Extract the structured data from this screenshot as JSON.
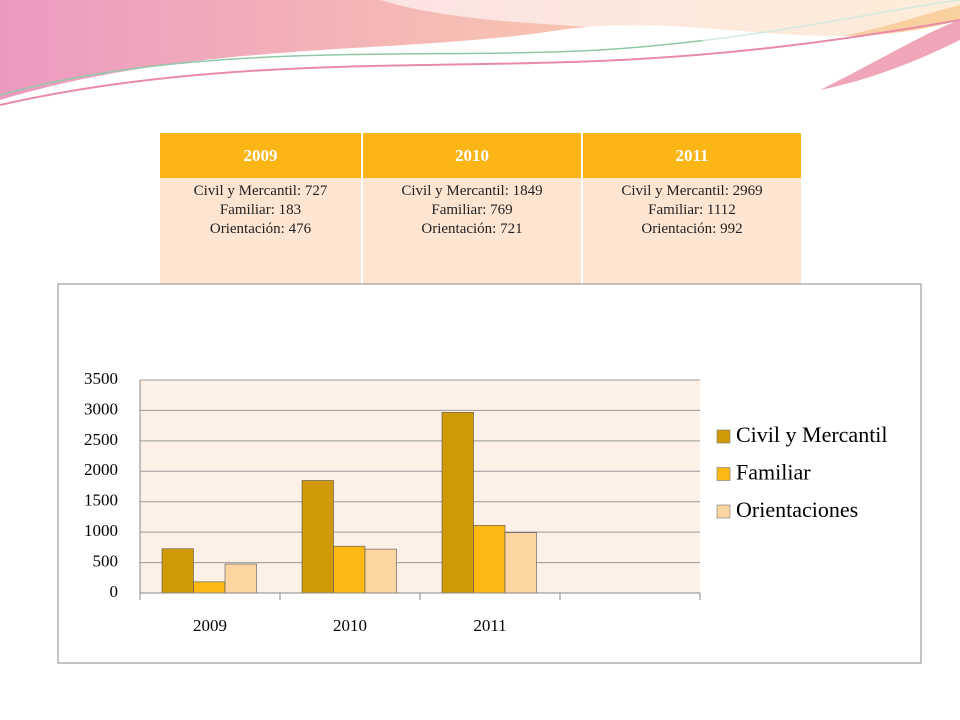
{
  "table": {
    "header": [
      "2009",
      "2010",
      "2011"
    ],
    "rows": [
      [
        [
          "Civil y Mercantil: 727",
          "Familiar: 183",
          "Orientación: 476"
        ],
        [
          "Civil y Mercantil: 1849",
          "Familiar: 769",
          "Orientación: 721"
        ],
        [
          "Civil y Mercantil: 2969",
          "Familiar: 1112",
          "Orientación: 992"
        ]
      ]
    ]
  },
  "chart_data": {
    "type": "bar",
    "categories": [
      "2009",
      "2010",
      "2011",
      null
    ],
    "series": [
      {
        "name": "Civil y Mercantil",
        "color": "#cf9a06",
        "values": [
          727,
          1849,
          2969,
          null
        ]
      },
      {
        "name": "Familiar",
        "color": "#fdb913",
        "values": [
          183,
          769,
          1112,
          null
        ]
      },
      {
        "name": "Orientaciones",
        "color": "#fdd5a0",
        "values": [
          476,
          721,
          992,
          null
        ]
      }
    ],
    "ylim": [
      0,
      3500
    ],
    "yticks": [
      0,
      500,
      1000,
      1500,
      2000,
      2500,
      3000,
      3500
    ],
    "grid": true,
    "legend": "right"
  }
}
